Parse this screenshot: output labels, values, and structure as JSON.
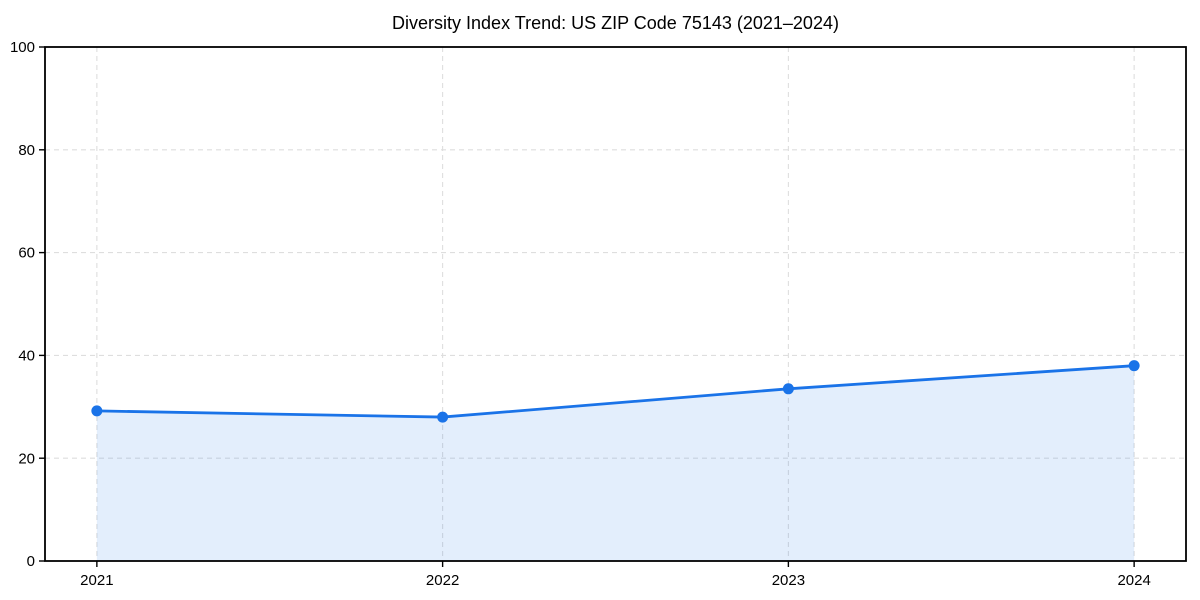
{
  "chart_data": {
    "type": "area",
    "title": "Diversity Index Trend: US ZIP Code 75143 (2021–2024)",
    "x": [
      2021,
      2022,
      2023,
      2024
    ],
    "x_labels": [
      "2021",
      "2022",
      "2023",
      "2024"
    ],
    "values": [
      29.2,
      28.0,
      33.5,
      38.0
    ],
    "series_name": "Diversity Index",
    "xlabel": "",
    "ylabel": "",
    "ylim": [
      0,
      100
    ],
    "yticks": [
      0,
      20,
      40,
      60,
      80,
      100
    ],
    "grid": "dashed",
    "legend_position": "none",
    "line_color": "#1a73e8",
    "fill_color": "rgba(26,115,232,0.12)",
    "marker": "circle",
    "grid_color": "#dedede",
    "axis_color": "#000000"
  }
}
